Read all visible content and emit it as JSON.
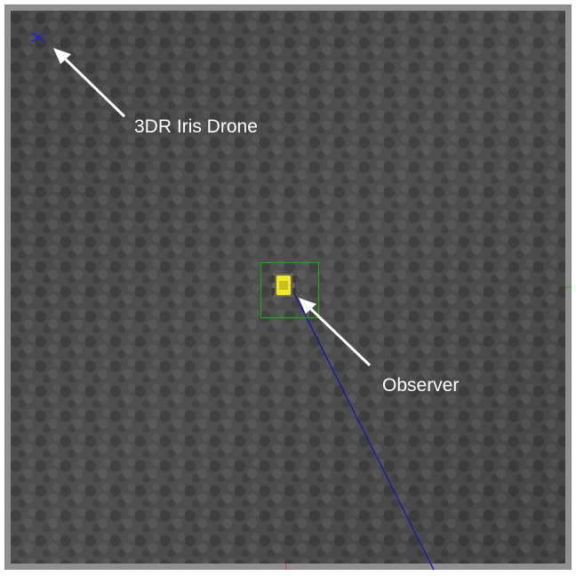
{
  "scene": {
    "ground_color": "#4a4a4a",
    "frame_color": "#8f8f8f",
    "trajectory_color": "#1a1a9e",
    "bounding_box_color": "#1fa31f",
    "observer_color": "#f2e82a"
  },
  "annotations": {
    "drone_label": "3DR Iris Drone",
    "observer_label": "Observer"
  },
  "icons": {
    "drone": "quadcopter-icon",
    "observer": "ground-robot-icon",
    "arrow": "arrow-icon"
  }
}
